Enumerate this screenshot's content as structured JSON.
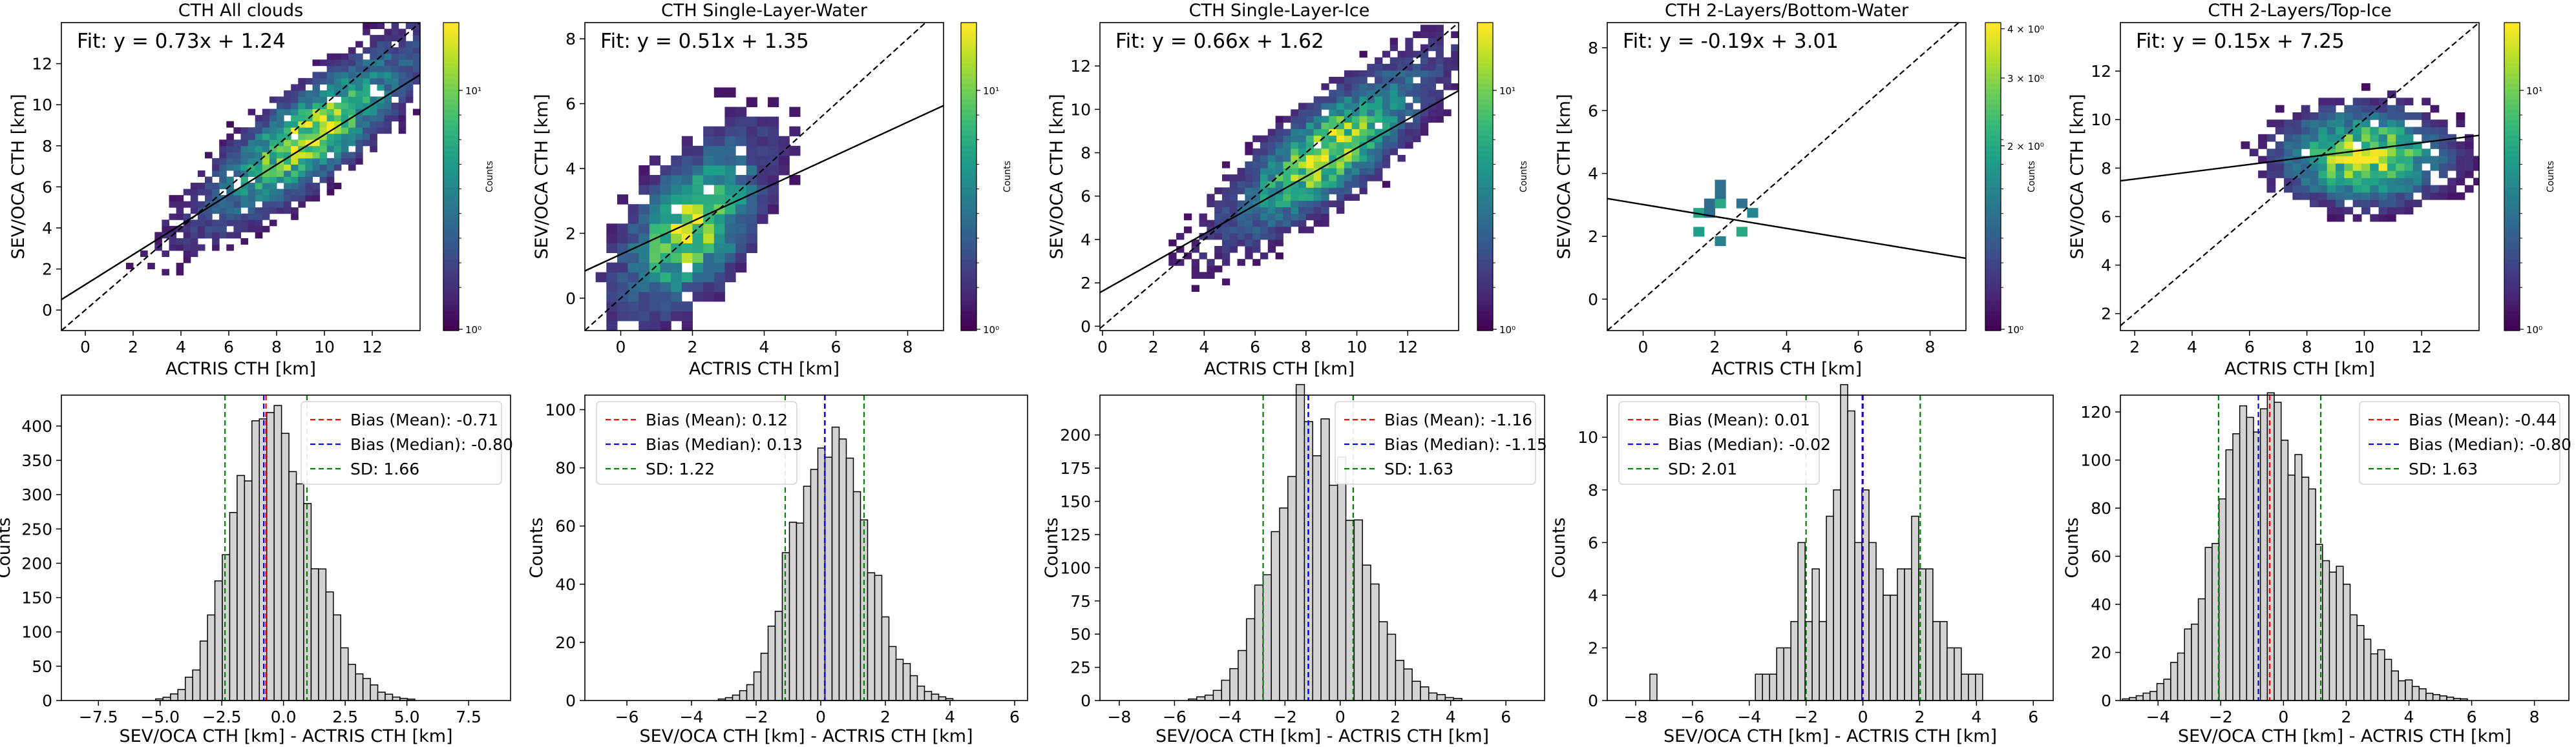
{
  "figure": {
    "top_row": [
      {
        "title": "CTH All clouds",
        "fit_label": "Fit: y = 0.73x + 1.24",
        "xlabel": "ACTRIS CTH [km]",
        "ylabel": "SEV/OCA CTH [km]",
        "xlim": [
          -1,
          14
        ],
        "ylim": [
          -1,
          14
        ],
        "xticks": [
          "0",
          "2",
          "4",
          "6",
          "8",
          "10",
          "12"
        ],
        "xtick_values": [
          0,
          2,
          4,
          6,
          8,
          10,
          12
        ],
        "yticks": [
          "0",
          "2",
          "4",
          "6",
          "8",
          "10",
          "12"
        ],
        "ytick_values": [
          0,
          2,
          4,
          6,
          8,
          10,
          12
        ],
        "colorbar_label": "Counts",
        "colorbar_ticks": [
          "10⁰",
          "10¹"
        ],
        "density_center": [
          9.5,
          8.0
        ],
        "density_spread": [
          2.8,
          2.2
        ]
      },
      {
        "title": "CTH Single-Layer-Water",
        "fit_label": "Fit: y = 0.51x + 1.35",
        "xlabel": "ACTRIS CTH [km]",
        "ylabel": "SEV/OCA CTH [km]",
        "xlim": [
          -1,
          9
        ],
        "ylim": [
          -1,
          8.5
        ],
        "xticks": [
          "0",
          "2",
          "4",
          "6",
          "8"
        ],
        "xtick_values": [
          0,
          2,
          4,
          6,
          8
        ],
        "yticks": [
          "0",
          "2",
          "4",
          "6",
          "8"
        ],
        "ytick_values": [
          0,
          2,
          4,
          6,
          8
        ],
        "colorbar_label": "Counts",
        "colorbar_ticks": [
          "10⁰",
          "10¹"
        ],
        "density_center": [
          2.0,
          2.0
        ],
        "density_spread": [
          1.2,
          1.2
        ]
      },
      {
        "title": "CTH Single-Layer-Ice",
        "fit_label": "Fit: y = 0.66x + 1.62",
        "xlabel": "ACTRIS CTH [km]",
        "ylabel": "SEV/OCA CTH [km]",
        "xlim": [
          -0.1,
          14
        ],
        "ylim": [
          -0.2,
          14
        ],
        "xticks": [
          "0",
          "2",
          "4",
          "6",
          "8",
          "10",
          "12"
        ],
        "xtick_values": [
          0,
          2,
          4,
          6,
          8,
          10,
          12
        ],
        "yticks": [
          "0",
          "2",
          "4",
          "6",
          "8",
          "10",
          "12"
        ],
        "ytick_values": [
          0,
          2,
          4,
          6,
          8,
          10,
          12
        ],
        "colorbar_label": "Counts",
        "colorbar_ticks": [
          "10⁰",
          "10¹"
        ],
        "density_center": [
          9.0,
          7.5
        ],
        "density_spread": [
          2.5,
          2.0
        ]
      },
      {
        "title": "CTH 2-Layers/Bottom-Water",
        "fit_label": "Fit: y = -0.19x + 3.01",
        "xlabel": "ACTRIS CTH [km]",
        "ylabel": "SEV/OCA CTH [km]",
        "xlim": [
          -1,
          9
        ],
        "ylim": [
          -1,
          8.8
        ],
        "xticks": [
          "0",
          "2",
          "4",
          "6",
          "8"
        ],
        "xtick_values": [
          0,
          2,
          4,
          6,
          8
        ],
        "yticks": [
          "0",
          "2",
          "4",
          "6",
          "8"
        ],
        "ytick_values": [
          0,
          2,
          4,
          6,
          8
        ],
        "colorbar_label": "Counts",
        "colorbar_ticks": [
          "2 × 10⁰",
          "3 × 10⁰",
          "4 × 10⁰",
          "10⁰"
        ],
        "density_center": [
          2.2,
          2.5
        ],
        "density_spread": [
          1.2,
          1.3
        ]
      },
      {
        "title": "CTH 2-Layers/Top-Ice",
        "fit_label": "Fit: y = 0.15x + 7.25",
        "xlabel": "ACTRIS CTH [km]",
        "ylabel": "SEV/OCA CTH [km]",
        "xlim": [
          1.5,
          14
        ],
        "ylim": [
          1.3,
          14
        ],
        "xticks": [
          "2",
          "4",
          "6",
          "8",
          "10",
          "12"
        ],
        "xtick_values": [
          2,
          4,
          6,
          8,
          10,
          12
        ],
        "yticks": [
          "2",
          "4",
          "6",
          "8",
          "10",
          "12"
        ],
        "ytick_values": [
          2,
          4,
          6,
          8,
          10,
          12
        ],
        "colorbar_label": "Counts",
        "colorbar_ticks": [
          "10⁰",
          "10¹"
        ],
        "density_center": [
          10.0,
          8.5
        ],
        "density_spread": [
          1.8,
          1.2
        ]
      }
    ],
    "bottom_row": [
      {
        "xlabel": "SEV/OCA CTH [km] - ACTRIS CTH [km]",
        "ylabel": "Counts",
        "xlim": [
          -9,
          9.2
        ],
        "ylim": [
          0,
          445
        ],
        "xticks": [
          "−7.5",
          "−5.0",
          "−2.5",
          "0.0",
          "2.5",
          "5.0",
          "7.5"
        ],
        "xtick_values": [
          -7.5,
          -5,
          -2.5,
          0,
          2.5,
          5,
          7.5
        ],
        "yticks": [
          "0",
          "50",
          "100",
          "150",
          "200",
          "250",
          "300",
          "350",
          "400"
        ],
        "ytick_values": [
          0,
          50,
          100,
          150,
          200,
          250,
          300,
          350,
          400
        ],
        "legend": [
          "Bias (Mean): -0.71",
          "Bias (Median): -0.80",
          "SD: 1.66"
        ],
        "mean": -0.71,
        "median": -0.8,
        "sd": 1.66,
        "bin_width": 0.3,
        "peak": 420,
        "skew": 0.2
      },
      {
        "xlabel": "SEV/OCA CTH [km] - ACTRIS CTH [km]",
        "ylabel": "Counts",
        "xlim": [
          -7.3,
          6.4
        ],
        "ylim": [
          0,
          105
        ],
        "xticks": [
          "−6",
          "−4",
          "−2",
          "0",
          "2",
          "4",
          "6"
        ],
        "xtick_values": [
          -6,
          -4,
          -2,
          0,
          2,
          4,
          6
        ],
        "yticks": [
          "0",
          "20",
          "40",
          "60",
          "80",
          "100"
        ],
        "ytick_values": [
          0,
          20,
          40,
          60,
          80,
          100
        ],
        "legend": [
          "Bias (Mean): 0.12",
          "Bias (Median): 0.13",
          "SD: 1.22"
        ],
        "mean": 0.12,
        "median": 0.13,
        "sd": 1.22,
        "bin_width": 0.22,
        "peak": 98,
        "skew": 0.1
      },
      {
        "xlabel": "SEV/OCA CTH [km] - ACTRIS CTH [km]",
        "ylabel": "Counts",
        "xlim": [
          -8.7,
          7.4
        ],
        "ylim": [
          0,
          230
        ],
        "xticks": [
          "−8",
          "−6",
          "−4",
          "−2",
          "0",
          "2",
          "4",
          "6"
        ],
        "xtick_values": [
          -8,
          -6,
          -4,
          -2,
          0,
          2,
          4,
          6
        ],
        "yticks": [
          "0",
          "25",
          "50",
          "75",
          "100",
          "125",
          "150",
          "175",
          "200"
        ],
        "ytick_values": [
          0,
          25,
          50,
          75,
          100,
          125,
          150,
          175,
          200
        ],
        "legend": [
          "Bias (Mean): -1.16",
          "Bias (Median): -1.15",
          "SD: 1.63"
        ],
        "mean": -1.16,
        "median": -1.15,
        "sd": 1.63,
        "bin_width": 0.3,
        "peak": 220,
        "skew": 0.15
      },
      {
        "xlabel": "SEV/OCA CTH [km] - ACTRIS CTH [km]",
        "ylabel": "Counts",
        "xlim": [
          -9,
          6.7
        ],
        "ylim": [
          0,
          11.6
        ],
        "xticks": [
          "−8",
          "−6",
          "−4",
          "−2",
          "0",
          "2",
          "4",
          "6"
        ],
        "xtick_values": [
          -8,
          -6,
          -4,
          -2,
          0,
          2,
          4,
          6
        ],
        "yticks": [
          "0",
          "2",
          "4",
          "6",
          "8",
          "10"
        ],
        "ytick_values": [
          0,
          2,
          4,
          6,
          8,
          10
        ],
        "legend": [
          "Bias (Mean): 0.01",
          "Bias (Median): -0.02",
          "SD: 2.01"
        ],
        "mean": 0.01,
        "median": -0.02,
        "sd": 2.01,
        "bin_width": 0.25,
        "peak": 11,
        "skew": 0
      },
      {
        "xlabel": "SEV/OCA CTH [km] - ACTRIS CTH [km]",
        "ylabel": "Counts",
        "xlim": [
          -5.2,
          9.1
        ],
        "ylim": [
          0,
          127
        ],
        "xticks": [
          "−4",
          "−2",
          "0",
          "2",
          "4",
          "6",
          "8"
        ],
        "xtick_values": [
          -4,
          -2,
          0,
          2,
          4,
          6,
          8
        ],
        "yticks": [
          "0",
          "20",
          "40",
          "60",
          "80",
          "100",
          "120"
        ],
        "ytick_values": [
          0,
          20,
          40,
          60,
          80,
          100,
          120
        ],
        "legend": [
          "Bias (Mean): -0.44",
          "Bias (Median): -0.80",
          "SD: 1.63"
        ],
        "mean": -0.44,
        "median": -0.8,
        "sd": 1.63,
        "bin_width": 0.22,
        "peak": 122,
        "skew": 0.35
      }
    ],
    "colors": {
      "mean_line": "#ff0000",
      "median_line": "#0000ff",
      "sd_line": "#008000",
      "bar_fill": "#d3d3d3",
      "bar_edge": "#000000",
      "fit_line": "#000000",
      "one_to_one": "#000000",
      "viridis": [
        "#440154",
        "#482878",
        "#3e4989",
        "#31688e",
        "#26828e",
        "#1f9e89",
        "#35b779",
        "#6ece58",
        "#b5de2b",
        "#fde725"
      ]
    }
  },
  "chart_data": [
    {
      "type": "heatmap",
      "title": "CTH All clouds",
      "xlabel": "ACTRIS CTH [km]",
      "ylabel": "SEV/OCA CTH [km]",
      "fit": {
        "slope": 0.73,
        "intercept": 1.24
      },
      "xlim": [
        -1,
        14
      ],
      "ylim": [
        -1,
        14
      ],
      "legend": "Fit: y = 0.73x + 1.24"
    },
    {
      "type": "heatmap",
      "title": "CTH Single-Layer-Water",
      "xlabel": "ACTRIS CTH [km]",
      "ylabel": "SEV/OCA CTH [km]",
      "fit": {
        "slope": 0.51,
        "intercept": 1.35
      },
      "xlim": [
        -1,
        9
      ],
      "ylim": [
        -1,
        8.5
      ],
      "legend": "Fit: y = 0.51x + 1.35"
    },
    {
      "type": "heatmap",
      "title": "CTH Single-Layer-Ice",
      "xlabel": "ACTRIS CTH [km]",
      "ylabel": "SEV/OCA CTH [km]",
      "fit": {
        "slope": 0.66,
        "intercept": 1.62
      },
      "xlim": [
        -0.1,
        14
      ],
      "ylim": [
        -0.2,
        14
      ],
      "legend": "Fit: y = 0.66x + 1.62"
    },
    {
      "type": "heatmap",
      "title": "CTH 2-Layers/Bottom-Water",
      "xlabel": "ACTRIS CTH [km]",
      "ylabel": "SEV/OCA CTH [km]",
      "fit": {
        "slope": -0.19,
        "intercept": 3.01
      },
      "xlim": [
        -1,
        9
      ],
      "ylim": [
        -1,
        8.8
      ],
      "legend": "Fit: y = -0.19x + 3.01"
    },
    {
      "type": "heatmap",
      "title": "CTH 2-Layers/Top-Ice",
      "xlabel": "ACTRIS CTH [km]",
      "ylabel": "SEV/OCA CTH [km]",
      "fit": {
        "slope": 0.15,
        "intercept": 7.25
      },
      "xlim": [
        1.5,
        14
      ],
      "ylim": [
        1.3,
        14
      ],
      "legend": "Fit: y = 0.15x + 7.25"
    },
    {
      "type": "bar",
      "xlabel": "SEV/OCA CTH [km] - ACTRIS CTH [km]",
      "ylabel": "Counts",
      "bias_mean": -0.71,
      "bias_median": -0.8,
      "sd": 1.66
    },
    {
      "type": "bar",
      "xlabel": "SEV/OCA CTH [km] - ACTRIS CTH [km]",
      "ylabel": "Counts",
      "bias_mean": 0.12,
      "bias_median": 0.13,
      "sd": 1.22
    },
    {
      "type": "bar",
      "xlabel": "SEV/OCA CTH [km] - ACTRIS CTH [km]",
      "ylabel": "Counts",
      "bias_mean": -1.16,
      "bias_median": -1.15,
      "sd": 1.63
    },
    {
      "type": "bar",
      "xlabel": "SEV/OCA CTH [km] - ACTRIS CTH [km]",
      "ylabel": "Counts",
      "bias_mean": 0.01,
      "bias_median": -0.02,
      "sd": 2.01
    },
    {
      "type": "bar",
      "xlabel": "SEV/OCA CTH [km] - ACTRIS CTH [km]",
      "ylabel": "Counts",
      "bias_mean": -0.44,
      "bias_median": -0.8,
      "sd": 1.63
    }
  ]
}
